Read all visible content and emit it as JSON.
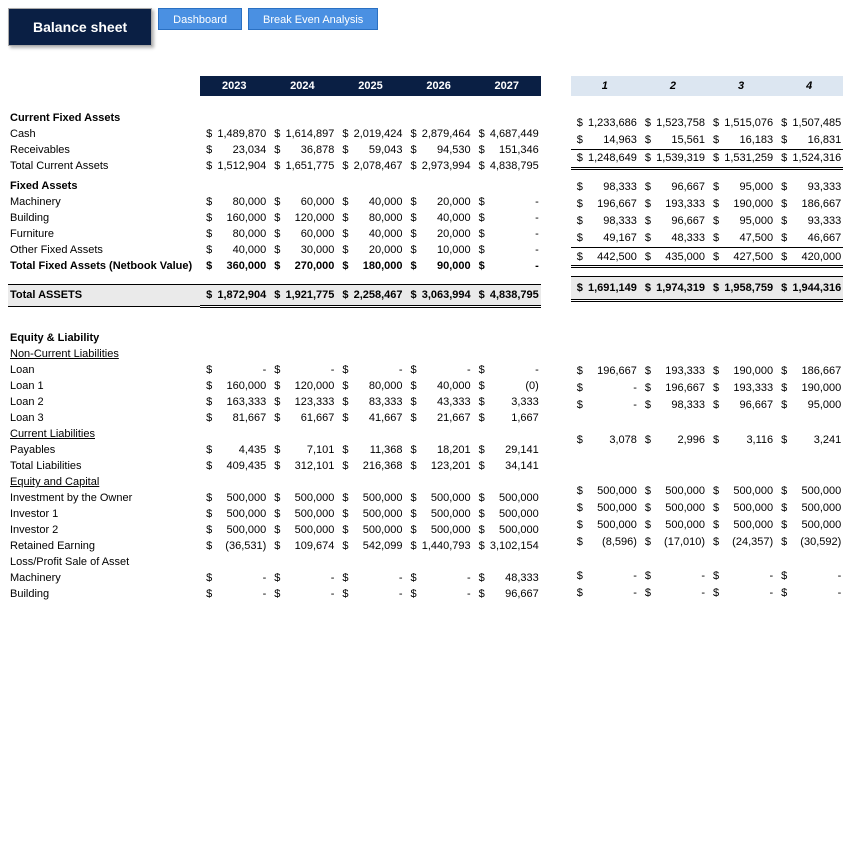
{
  "header": {
    "title": "Balance sheet",
    "tab1": "Dashboard",
    "tab2": "Break Even Analysis"
  },
  "leftYears": [
    "2023",
    "2024",
    "2025",
    "2026",
    "2027"
  ],
  "rightYears": [
    "1",
    "2",
    "3",
    "4"
  ],
  "sect": {
    "currentFixed": "Current Fixed Assets",
    "cash": "Cash",
    "receivables": "Receivables",
    "totalCurrent": "Total Current Assets",
    "fixed": "Fixed Assets",
    "machinery": "Machinery",
    "building": "Building",
    "furniture": "Furniture",
    "otherFixed": "Other Fixed Assets",
    "totalFixed": "Total Fixed Assets (Netbook Value)",
    "totalAssets": "Total ASSETS",
    "equityLiab": "Equity & Liability",
    "nonCurLiab": "Non-Current Liabilities",
    "loan": "Loan",
    "loan1": "Loan 1",
    "loan2": "Loan 2",
    "loan3": "Loan 3",
    "curLiab": "Current Liabilities",
    "payables": "Payables",
    "totalLiab": "Total Liabilities",
    "equityCap": "Equity and Capital",
    "investOwner": "Investment by the Owner",
    "investor1": "Investor 1",
    "investor2": "Investor 2",
    "retained": "Retained Earning",
    "lossProfit": "Loss/Profit Sale of Asset",
    "machinery2": "Machinery",
    "building2": "Building"
  },
  "L": {
    "cash": [
      "1,489,870",
      "1,614,897",
      "2,019,424",
      "2,879,464",
      "4,687,449"
    ],
    "receivables": [
      "23,034",
      "36,878",
      "59,043",
      "94,530",
      "151,346"
    ],
    "totalCurrent": [
      "1,512,904",
      "1,651,775",
      "2,078,467",
      "2,973,994",
      "4,838,795"
    ],
    "machinery": [
      "80,000",
      "60,000",
      "40,000",
      "20,000",
      "-"
    ],
    "building": [
      "160,000",
      "120,000",
      "80,000",
      "40,000",
      "-"
    ],
    "furniture": [
      "80,000",
      "60,000",
      "40,000",
      "20,000",
      "-"
    ],
    "otherFixed": [
      "40,000",
      "30,000",
      "20,000",
      "10,000",
      "-"
    ],
    "totalFixed": [
      "360,000",
      "270,000",
      "180,000",
      "90,000",
      "-"
    ],
    "totalAssets": [
      "1,872,904",
      "1,921,775",
      "2,258,467",
      "3,063,994",
      "4,838,795"
    ],
    "loan": [
      "-",
      "-",
      "-",
      "-",
      "-"
    ],
    "loan1": [
      "160,000",
      "120,000",
      "80,000",
      "40,000",
      "(0)"
    ],
    "loan2": [
      "163,333",
      "123,333",
      "83,333",
      "43,333",
      "3,333"
    ],
    "loan3": [
      "81,667",
      "61,667",
      "41,667",
      "21,667",
      "1,667"
    ],
    "payables": [
      "4,435",
      "7,101",
      "11,368",
      "18,201",
      "29,141"
    ],
    "totalLiab": [
      "409,435",
      "312,101",
      "216,368",
      "123,201",
      "34,141"
    ],
    "investOwner": [
      "500,000",
      "500,000",
      "500,000",
      "500,000",
      "500,000"
    ],
    "investor1": [
      "500,000",
      "500,000",
      "500,000",
      "500,000",
      "500,000"
    ],
    "investor2": [
      "500,000",
      "500,000",
      "500,000",
      "500,000",
      "500,000"
    ],
    "retained": [
      "(36,531)",
      "109,674",
      "542,099",
      "1,440,793",
      "3,102,154"
    ],
    "machinery2": [
      "-",
      "-",
      "-",
      "-",
      "48,333"
    ],
    "building2": [
      "-",
      "-",
      "-",
      "-",
      "96,667"
    ]
  },
  "R": {
    "cash": [
      "1,233,686",
      "1,523,758",
      "1,515,076",
      "1,507,485"
    ],
    "receivables": [
      "14,963",
      "15,561",
      "16,183",
      "16,831"
    ],
    "totalCurrent": [
      "1,248,649",
      "1,539,319",
      "1,531,259",
      "1,524,316"
    ],
    "machinery": [
      "98,333",
      "96,667",
      "95,000",
      "93,333"
    ],
    "building": [
      "196,667",
      "193,333",
      "190,000",
      "186,667"
    ],
    "furniture": [
      "98,333",
      "96,667",
      "95,000",
      "93,333"
    ],
    "otherFixed": [
      "49,167",
      "48,333",
      "47,500",
      "46,667"
    ],
    "totalFixed": [
      "442,500",
      "435,000",
      "427,500",
      "420,000"
    ],
    "totalAssets": [
      "1,691,149",
      "1,974,319",
      "1,958,759",
      "1,944,316"
    ],
    "loan1": [
      "196,667",
      "193,333",
      "190,000",
      "186,667"
    ],
    "loan2": [
      "-",
      "196,667",
      "193,333",
      "190,000"
    ],
    "loan3": [
      "-",
      "98,333",
      "96,667",
      "95,000"
    ],
    "payables": [
      "3,078",
      "2,996",
      "3,116",
      "3,241"
    ],
    "investOwner": [
      "500,000",
      "500,000",
      "500,000",
      "500,000"
    ],
    "investor1": [
      "500,000",
      "500,000",
      "500,000",
      "500,000"
    ],
    "investor2": [
      "500,000",
      "500,000",
      "500,000",
      "500,000"
    ],
    "retained": [
      "(8,596)",
      "(17,010)",
      "(24,357)",
      "(30,592)"
    ],
    "machinery2": [
      "-",
      "-",
      "-",
      "-"
    ],
    "building2": [
      "-",
      "-",
      "-",
      "-"
    ]
  }
}
